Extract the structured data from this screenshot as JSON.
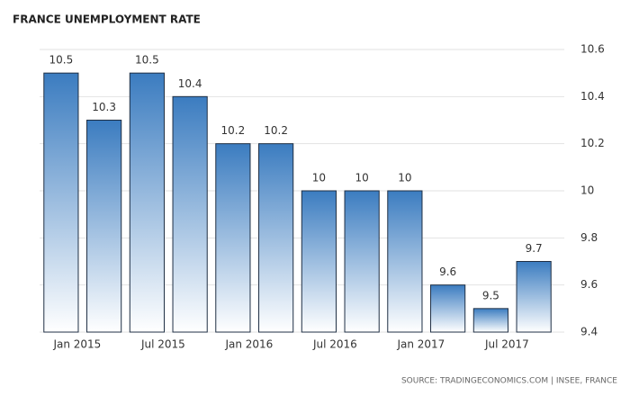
{
  "chart_data": {
    "type": "bar",
    "title": "FRANCE UNEMPLOYMENT RATE",
    "source": "SOURCE: TRADINGECONOMICS.COM | INSEE, FRANCE",
    "categories": [
      "Jan 2015",
      null,
      "Jul 2015",
      null,
      "Jan 2016",
      null,
      "Jul 2016",
      null,
      "Jan 2017",
      null,
      "Jul 2017",
      null
    ],
    "values": [
      10.5,
      10.3,
      10.5,
      10.4,
      10.2,
      10.2,
      10,
      10,
      10,
      9.6,
      9.5,
      9.7
    ],
    "color": "#3b7cc0",
    "ylim": [
      9.4,
      10.6
    ],
    "yticks": [
      9.4,
      9.6,
      9.8,
      10,
      10.2,
      10.4,
      10.6
    ],
    "grid": true
  }
}
